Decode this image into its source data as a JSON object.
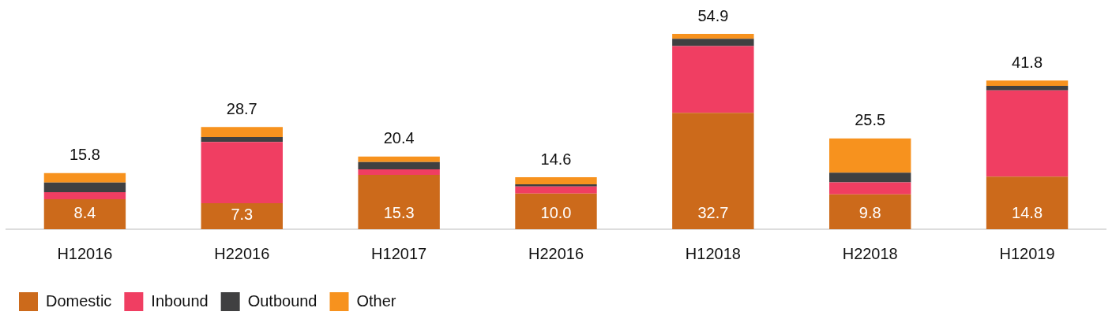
{
  "chart_data": {
    "type": "bar",
    "stacked": true,
    "categories": [
      "H12016",
      "H22016",
      "H12017",
      "H22016",
      "H12018",
      "H22018",
      "H12019"
    ],
    "series": [
      {
        "name": "Domestic",
        "color": "#cc6a1b",
        "values": [
          8.4,
          7.3,
          15.3,
          10.0,
          32.7,
          9.8,
          14.8
        ],
        "value_labels": [
          "8.4",
          "7.3",
          "15.3",
          "10.0",
          "32.7",
          "9.8",
          "14.8"
        ]
      },
      {
        "name": "Inbound",
        "color": "#f03e62",
        "values": [
          2.0,
          17.2,
          1.5,
          2.0,
          18.8,
          3.4,
          24.2
        ]
      },
      {
        "name": "Outbound",
        "color": "#404041",
        "values": [
          2.7,
          1.4,
          2.1,
          0.6,
          2.0,
          2.7,
          1.3
        ]
      },
      {
        "name": "Other",
        "color": "#f7921e",
        "values": [
          2.7,
          2.8,
          1.5,
          2.0,
          1.4,
          9.6,
          1.5
        ]
      }
    ],
    "totals": [
      "15.8",
      "28.7",
      "20.4",
      "14.6",
      "54.9",
      "25.5",
      "41.8"
    ],
    "legend": "bottom left",
    "grid": false,
    "tick_labels": "x"
  }
}
